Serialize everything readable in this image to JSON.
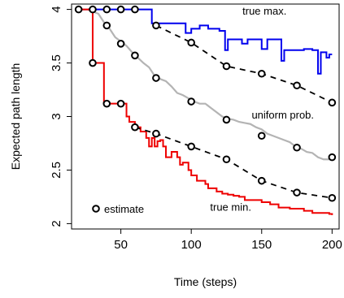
{
  "chart_data": {
    "type": "line",
    "title": "",
    "xlabel": "Time (steps)",
    "ylabel": "Expected path length",
    "xlim": [
      15,
      205
    ],
    "ylim": [
      1.95,
      4.05
    ],
    "xticks": [
      50,
      100,
      150,
      200
    ],
    "yticks": [
      2,
      2.5,
      3,
      3.5,
      4
    ],
    "ytick_labels_rotated": true,
    "grid": false,
    "series": [
      {
        "name": "true max.",
        "color": "#0000ee",
        "style": "step",
        "x": [
          20,
          70,
          72,
          76,
          80,
          85,
          90,
          94,
          96,
          100,
          104,
          106,
          110,
          112,
          120,
          124,
          126,
          130,
          134,
          136,
          140,
          148,
          150,
          154,
          158,
          160,
          164,
          166,
          170,
          172,
          176,
          180,
          184,
          186,
          190,
          192,
          194,
          196,
          198,
          200
        ],
        "y": [
          4.0,
          4.0,
          3.87,
          3.87,
          3.87,
          3.87,
          3.87,
          3.87,
          3.78,
          3.82,
          3.82,
          3.85,
          3.85,
          3.82,
          3.8,
          3.62,
          3.72,
          3.72,
          3.72,
          3.68,
          3.72,
          3.72,
          3.63,
          3.72,
          3.72,
          3.72,
          3.52,
          3.62,
          3.62,
          3.62,
          3.62,
          3.63,
          3.63,
          3.62,
          3.4,
          3.6,
          3.6,
          3.55,
          3.58,
          3.58
        ]
      },
      {
        "name": "uniform prob.",
        "color": "#b4b4b4",
        "style": "line",
        "x": [
          20,
          26,
          30,
          34,
          38,
          42,
          46,
          50,
          54,
          58,
          62,
          66,
          70,
          74,
          78,
          82,
          86,
          90,
          94,
          98,
          102,
          106,
          110,
          114,
          118,
          122,
          126,
          130,
          134,
          138,
          142,
          146,
          150,
          154,
          158,
          162,
          166,
          170,
          174,
          178,
          182,
          186,
          190,
          194,
          198,
          200
        ],
        "y": [
          4.0,
          4.0,
          3.98,
          3.96,
          3.88,
          3.82,
          3.74,
          3.7,
          3.66,
          3.6,
          3.55,
          3.5,
          3.46,
          3.38,
          3.35,
          3.33,
          3.28,
          3.22,
          3.2,
          3.17,
          3.14,
          3.12,
          3.12,
          3.08,
          3.04,
          3.0,
          2.98,
          2.97,
          2.95,
          2.94,
          2.93,
          2.9,
          2.88,
          2.84,
          2.82,
          2.8,
          2.78,
          2.76,
          2.72,
          2.7,
          2.67,
          2.66,
          2.62,
          2.6,
          2.6,
          2.62
        ]
      },
      {
        "name": "true min.",
        "color": "#ee0000",
        "style": "step",
        "x": [
          20,
          28,
          30,
          36,
          38,
          44,
          48,
          52,
          54,
          56,
          60,
          64,
          68,
          70,
          72,
          74,
          76,
          78,
          80,
          82,
          86,
          90,
          92,
          94,
          98,
          100,
          104,
          110,
          112,
          118,
          122,
          126,
          130,
          134,
          138,
          144,
          150,
          156,
          162,
          166,
          170,
          176,
          180,
          186,
          192,
          198,
          200
        ],
        "y": [
          4.0,
          4.0,
          3.5,
          3.5,
          3.12,
          3.12,
          3.12,
          3.12,
          3.0,
          2.95,
          2.9,
          2.86,
          2.8,
          2.72,
          2.8,
          2.72,
          2.77,
          2.78,
          2.72,
          2.62,
          2.67,
          2.62,
          2.55,
          2.57,
          2.5,
          2.45,
          2.4,
          2.37,
          2.33,
          2.3,
          2.28,
          2.27,
          2.26,
          2.25,
          2.22,
          2.22,
          2.2,
          2.18,
          2.15,
          2.15,
          2.14,
          2.14,
          2.12,
          2.1,
          2.1,
          2.09,
          2.08
        ]
      },
      {
        "name": "estimate",
        "color": "#000000",
        "style": "markers",
        "marker": "open-circle",
        "groups": [
          {
            "x": [
              20,
              30,
              40,
              50,
              60
            ],
            "y": [
              4.0,
              4.0,
              4.0,
              4.0,
              4.0
            ]
          },
          {
            "x": [
              40,
              50,
              60,
              75,
              100,
              125,
              150,
              175,
              200
            ],
            "y": [
              3.85,
              3.68,
              3.57,
              3.36,
              3.14,
              2.97,
              2.82,
              2.71,
              2.62
            ]
          },
          {
            "x": [
              30,
              40,
              50,
              60,
              75,
              100,
              125,
              150,
              175,
              200
            ],
            "y": [
              3.5,
              3.12,
              3.12,
              2.9,
              2.84,
              2.72,
              2.6,
              2.4,
              2.29,
              2.24
            ]
          },
          {
            "x": [
              75,
              100,
              125,
              150,
              175,
              200
            ],
            "y": [
              3.85,
              3.69,
              3.47,
              3.4,
              3.29,
              3.13
            ]
          }
        ],
        "dashed_fits": [
          {
            "x": [
              60,
              75,
              100,
              125,
              150,
              175,
              200
            ],
            "y": [
              2.9,
              2.84,
              2.72,
              2.6,
              2.4,
              2.29,
              2.24
            ]
          },
          {
            "x": [
              75,
              100,
              125,
              150,
              175,
              200
            ],
            "y": [
              3.85,
              3.69,
              3.47,
              3.4,
              3.29,
              3.13
            ]
          }
        ]
      }
    ],
    "annotations": [
      {
        "text": "true max.",
        "x": 152,
        "y": 3.95
      },
      {
        "text": "uniform prob.",
        "x": 165,
        "y": 2.98
      },
      {
        "text": "true min.",
        "x": 128,
        "y": 2.12
      }
    ],
    "legend": {
      "placement": "bottom-left",
      "entries": [
        {
          "marker": "open-circle",
          "label": "estimate"
        }
      ]
    }
  }
}
